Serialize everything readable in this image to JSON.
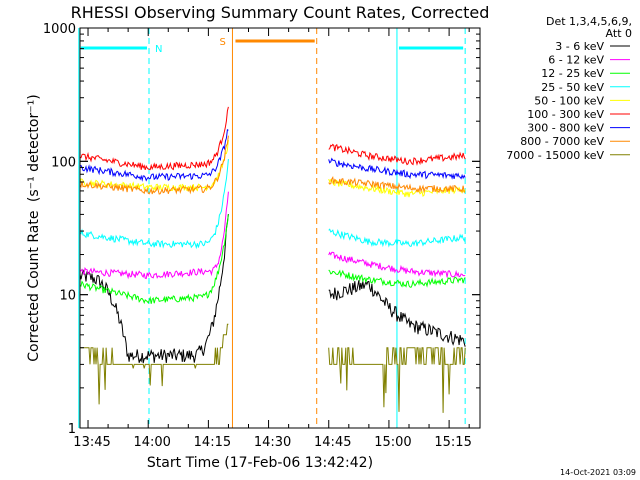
{
  "chart_data": {
    "type": "line",
    "title": "RHESSI Observing Summary Count Rates, Corrected",
    "xlabel": "Start Time (17-Feb-06 13:42:42)",
    "ylabel": "Corrected Count Rate",
    "ylabel_unit": "(s⁻¹ detector⁻¹)",
    "y_scale": "log",
    "ylim": [
      1,
      1000
    ],
    "y_tick_labels": [
      "1",
      "10",
      "100",
      "1000"
    ],
    "x_range_minutes_after_1342": [
      0.3,
      100.0
    ],
    "x_tick_labels": [
      "13:45",
      "14:00",
      "14:15",
      "14:30",
      "14:45",
      "15:00",
      "15:15"
    ],
    "legend_header": [
      "Det 1,3,4,5,6,9,",
      "Att 0"
    ],
    "legend_placement": "right",
    "annotations": {
      "night_label": "N",
      "saa_label": "S",
      "night_bars": [
        [
          "13:42:42",
          "14:00:12"
        ],
        [
          "15:02:00",
          "15:19:00"
        ]
      ],
      "saa_bar": [
        "14:21:00",
        "14:42:00"
      ],
      "dashed_lines": [
        "14:00:12",
        "14:42:00",
        "15:19:00"
      ],
      "solid_lines": [
        "13:42:42",
        "14:21:00",
        "15:02:00"
      ]
    },
    "footer_timestamp": "14-Oct-2021 03:09",
    "gaps": [
      [
        "14:21",
        "14:44"
      ]
    ],
    "series": [
      {
        "name": "3 - 6 keV",
        "color": "#000000",
        "pre": [
          [
            13.7,
            "13:43"
          ],
          [
            3.5,
            "13:55"
          ],
          [
            3.5,
            "14:10"
          ],
          [
            40,
            "14:20"
          ]
        ],
        "post": [
          [
            10,
            "14:45"
          ],
          [
            12,
            "14:55"
          ],
          [
            8,
            "15:00"
          ],
          [
            6,
            "15:05"
          ],
          [
            4.5,
            "15:19"
          ]
        ]
      },
      {
        "name": "6 - 12 keV",
        "color": "#ff00ff",
        "pre": [
          [
            15,
            "13:43"
          ],
          [
            14,
            "14:00"
          ],
          [
            15,
            "14:15"
          ],
          [
            60,
            "14:20"
          ]
        ],
        "post": [
          [
            20,
            "14:45"
          ],
          [
            17,
            "14:55"
          ],
          [
            15,
            "15:05"
          ],
          [
            14,
            "15:19"
          ]
        ]
      },
      {
        "name": "12 - 25 keV",
        "color": "#00ff00",
        "pre": [
          [
            12,
            "13:43"
          ],
          [
            9,
            "14:00"
          ],
          [
            9.5,
            "14:12"
          ],
          [
            40,
            "14:20"
          ]
        ],
        "post": [
          [
            15,
            "14:45"
          ],
          [
            13,
            "14:55"
          ],
          [
            12,
            "15:05"
          ],
          [
            13,
            "15:19"
          ]
        ]
      },
      {
        "name": "25 - 50 keV",
        "color": "#00ffff",
        "pre": [
          [
            29,
            "13:43"
          ],
          [
            24,
            "14:00"
          ],
          [
            24,
            "14:13"
          ],
          [
            100,
            "14:20"
          ]
        ],
        "post": [
          [
            30,
            "14:45"
          ],
          [
            25,
            "14:55"
          ],
          [
            24,
            "15:05"
          ],
          [
            27,
            "15:19"
          ]
        ]
      },
      {
        "name": "50 - 100 keV",
        "color": "#ffff00",
        "pre": [
          [
            70,
            "13:43"
          ],
          [
            64,
            "14:00"
          ],
          [
            64,
            "14:13"
          ],
          [
            140,
            "14:20"
          ]
        ],
        "post": [
          [
            70,
            "14:45"
          ],
          [
            63,
            "14:55"
          ],
          [
            57,
            "15:05"
          ],
          [
            62,
            "15:19"
          ]
        ]
      },
      {
        "name": "100 - 300 keV",
        "color": "#ff0000",
        "pre": [
          [
            110,
            "13:43"
          ],
          [
            90,
            "14:00"
          ],
          [
            95,
            "14:13"
          ],
          [
            250,
            "14:20"
          ]
        ],
        "post": [
          [
            130,
            "14:45"
          ],
          [
            110,
            "14:55"
          ],
          [
            100,
            "15:05"
          ],
          [
            110,
            "15:19"
          ]
        ]
      },
      {
        "name": "300 - 800 keV",
        "color": "#0000ff",
        "pre": [
          [
            90,
            "13:43"
          ],
          [
            76,
            "14:00"
          ],
          [
            78,
            "14:13"
          ],
          [
            180,
            "14:20"
          ]
        ],
        "post": [
          [
            100,
            "14:45"
          ],
          [
            88,
            "14:55"
          ],
          [
            80,
            "15:05"
          ],
          [
            78,
            "15:19"
          ]
        ]
      },
      {
        "name": "800 - 7000 keV",
        "color": "#ff8800",
        "pre": [
          [
            68,
            "13:43"
          ],
          [
            60,
            "14:00"
          ],
          [
            62,
            "14:13"
          ],
          [
            150,
            "14:20"
          ]
        ],
        "post": [
          [
            72,
            "14:45"
          ],
          [
            68,
            "14:55"
          ],
          [
            63,
            "15:05"
          ],
          [
            62,
            "15:19"
          ]
        ]
      },
      {
        "name": "7000 - 15000 keV",
        "color": "#808000",
        "pre": [
          [
            4,
            "13:43"
          ],
          [
            2.8,
            "13:55"
          ],
          [
            2.8,
            "14:12"
          ],
          [
            6,
            "14:20"
          ]
        ],
        "post": [
          [
            3.5,
            "14:45"
          ],
          [
            3,
            "14:55"
          ],
          [
            3.5,
            "15:05"
          ],
          [
            3.5,
            "15:19"
          ]
        ]
      }
    ]
  }
}
